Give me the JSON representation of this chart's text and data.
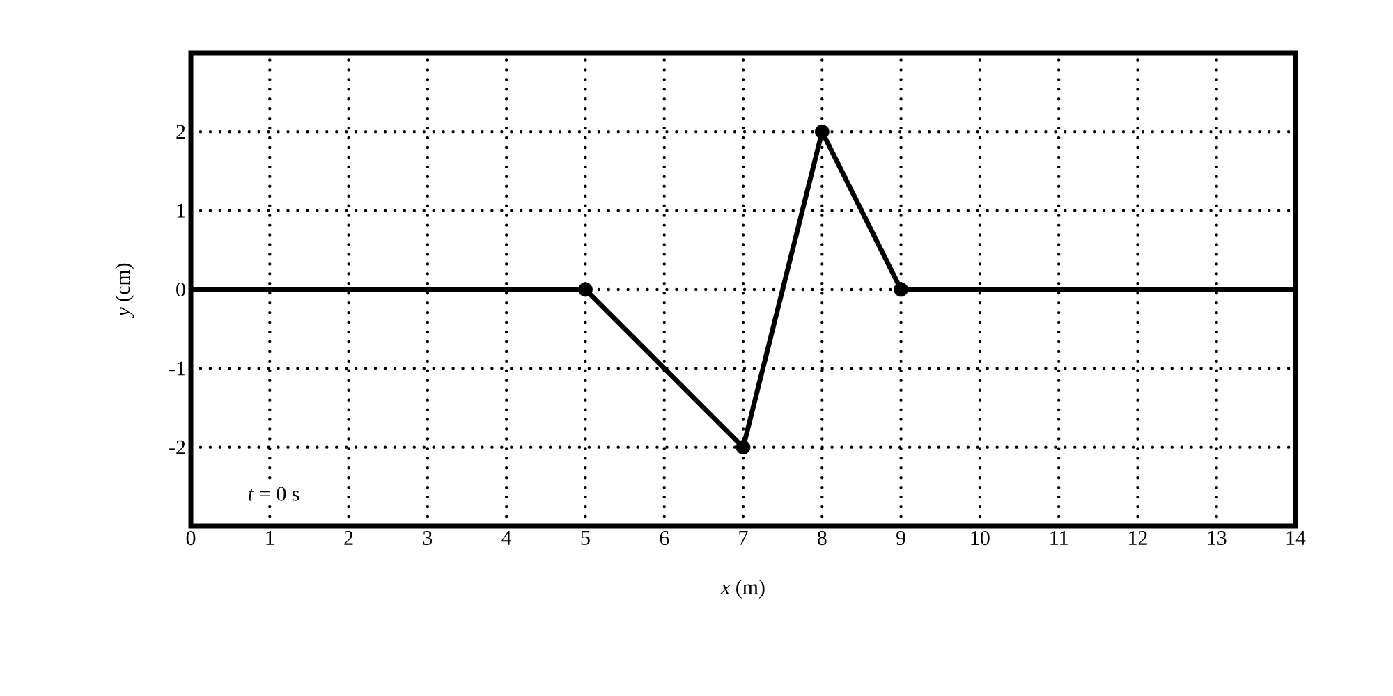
{
  "chart_data": {
    "type": "line",
    "xlabel": "*x* (m)",
    "ylabel": "*y* (cm)",
    "annotations": [
      "*t* = 0 s"
    ],
    "series": [
      {
        "color": "#000000",
        "x": [
          0,
          5,
          7,
          8,
          9,
          14
        ],
        "values": [
          0,
          0,
          -2,
          2,
          0,
          0
        ],
        "marker": "none",
        "line_style": "solid"
      },
      {
        "type": "scatter",
        "color": "#000000",
        "x": [
          5,
          7,
          8,
          9
        ],
        "values": [
          0,
          -2,
          2,
          0
        ],
        "marker": "circle"
      }
    ],
    "xlim": [
      0,
      14
    ],
    "ylim": [
      -3,
      3
    ],
    "xticks": [
      0,
      1,
      2,
      3,
      4,
      5,
      6,
      7,
      8,
      9,
      10,
      11,
      12,
      13,
      14
    ],
    "yticks": [
      -2,
      -1,
      0,
      1,
      2
    ],
    "grid": true
  }
}
